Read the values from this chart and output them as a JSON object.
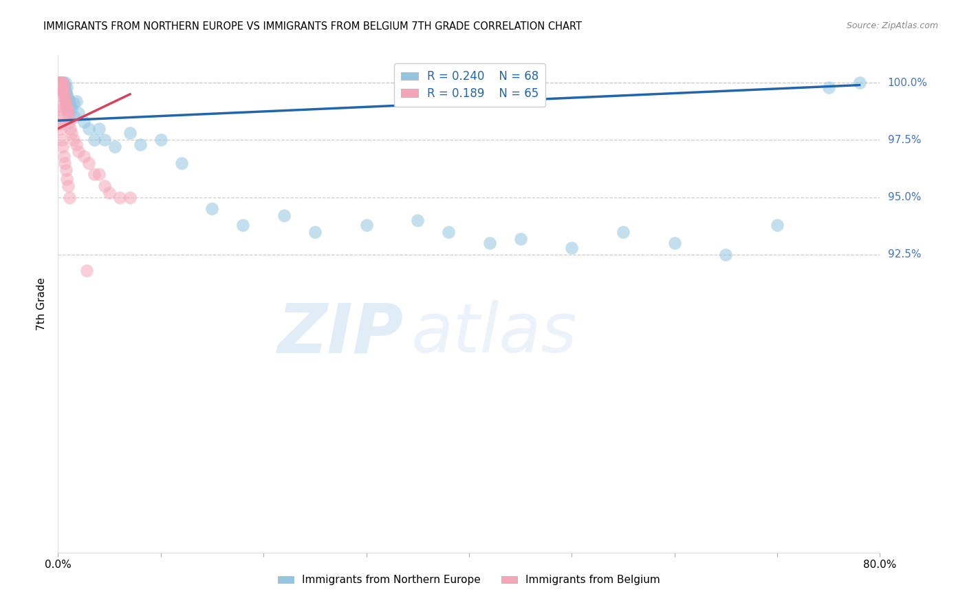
{
  "title": "IMMIGRANTS FROM NORTHERN EUROPE VS IMMIGRANTS FROM BELGIUM 7TH GRADE CORRELATION CHART",
  "source": "Source: ZipAtlas.com",
  "xlabel_blue": "Immigrants from Northern Europe",
  "xlabel_pink": "Immigrants from Belgium",
  "ylabel": "7th Grade",
  "watermark_zip": "ZIP",
  "watermark_atlas": "atlas",
  "x_min": 0.0,
  "x_max": 80.0,
  "y_min": 79.5,
  "y_max": 101.2,
  "yticks": [
    92.5,
    95.0,
    97.5,
    100.0
  ],
  "ytick_labels": [
    "92.5%",
    "95.0%",
    "97.5%",
    "100.0%"
  ],
  "legend_blue_R": "R = 0.240",
  "legend_blue_N": "N = 68",
  "legend_pink_R": "R = 0.189",
  "legend_pink_N": "N = 65",
  "blue_color": "#93c5e0",
  "pink_color": "#f4a6b8",
  "trend_blue_color": "#2166ac",
  "trend_pink_color": "#d6435a",
  "blue_scatter_x": [
    0.05,
    0.08,
    0.1,
    0.1,
    0.12,
    0.15,
    0.15,
    0.18,
    0.2,
    0.2,
    0.22,
    0.25,
    0.25,
    0.28,
    0.3,
    0.3,
    0.32,
    0.35,
    0.35,
    0.38,
    0.4,
    0.4,
    0.42,
    0.45,
    0.5,
    0.5,
    0.55,
    0.6,
    0.65,
    0.7,
    0.75,
    0.8,
    0.85,
    0.9,
    1.0,
    1.1,
    1.2,
    1.3,
    1.5,
    1.6,
    1.8,
    2.0,
    2.5,
    3.0,
    3.5,
    4.0,
    4.5,
    5.5,
    7.0,
    8.0,
    10.0,
    12.0,
    15.0,
    18.0,
    22.0,
    25.0,
    30.0,
    35.0,
    38.0,
    42.0,
    45.0,
    50.0,
    55.0,
    60.0,
    65.0,
    70.0,
    75.0,
    78.0
  ],
  "blue_scatter_y": [
    99.9,
    99.8,
    100.0,
    99.7,
    99.9,
    100.0,
    99.8,
    99.9,
    100.0,
    99.7,
    100.0,
    99.9,
    99.8,
    100.0,
    99.9,
    99.7,
    100.0,
    99.8,
    99.9,
    100.0,
    99.8,
    99.7,
    100.0,
    99.9,
    99.8,
    100.0,
    99.9,
    99.7,
    99.8,
    100.0,
    99.5,
    99.6,
    99.8,
    99.4,
    99.3,
    99.2,
    99.0,
    98.9,
    99.1,
    98.5,
    99.2,
    98.7,
    98.3,
    98.0,
    97.5,
    98.0,
    97.5,
    97.2,
    97.8,
    97.3,
    97.5,
    96.5,
    94.5,
    93.8,
    94.2,
    93.5,
    93.8,
    94.0,
    93.5,
    93.0,
    93.2,
    92.8,
    93.5,
    93.0,
    92.5,
    93.8,
    99.8,
    100.0
  ],
  "pink_scatter_x": [
    0.03,
    0.05,
    0.07,
    0.08,
    0.1,
    0.1,
    0.12,
    0.12,
    0.15,
    0.15,
    0.18,
    0.2,
    0.2,
    0.22,
    0.25,
    0.25,
    0.28,
    0.3,
    0.3,
    0.32,
    0.35,
    0.38,
    0.4,
    0.42,
    0.45,
    0.48,
    0.5,
    0.55,
    0.6,
    0.65,
    0.7,
    0.75,
    0.8,
    0.85,
    0.9,
    0.95,
    1.0,
    1.1,
    1.2,
    1.3,
    1.5,
    1.8,
    2.0,
    2.5,
    3.0,
    3.5,
    4.0,
    4.5,
    5.0,
    6.0,
    7.0,
    0.05,
    0.08,
    0.12,
    0.18,
    0.22,
    0.35,
    0.45,
    0.55,
    0.65,
    0.75,
    0.85,
    0.95,
    1.1,
    2.8
  ],
  "pink_scatter_y": [
    100.0,
    99.9,
    100.0,
    99.8,
    99.9,
    100.0,
    99.8,
    99.9,
    100.0,
    99.7,
    100.0,
    99.9,
    99.8,
    100.0,
    99.9,
    99.7,
    99.8,
    100.0,
    99.9,
    99.8,
    100.0,
    99.7,
    99.8,
    100.0,
    99.9,
    99.6,
    99.8,
    99.5,
    99.4,
    99.3,
    99.2,
    99.1,
    99.0,
    98.9,
    98.8,
    98.7,
    98.5,
    98.3,
    98.0,
    97.8,
    97.5,
    97.3,
    97.0,
    96.8,
    96.5,
    96.0,
    96.0,
    95.5,
    95.2,
    95.0,
    95.0,
    99.0,
    98.8,
    98.5,
    98.2,
    98.0,
    97.5,
    97.2,
    96.8,
    96.5,
    96.2,
    95.8,
    95.5,
    95.0,
    91.8
  ],
  "trend_blue_x0": 0.0,
  "trend_blue_y0": 98.35,
  "trend_blue_x1": 78.0,
  "trend_blue_y1": 99.9,
  "trend_pink_x0": 0.0,
  "trend_pink_y0": 98.0,
  "trend_pink_x1": 7.0,
  "trend_pink_y1": 99.5
}
